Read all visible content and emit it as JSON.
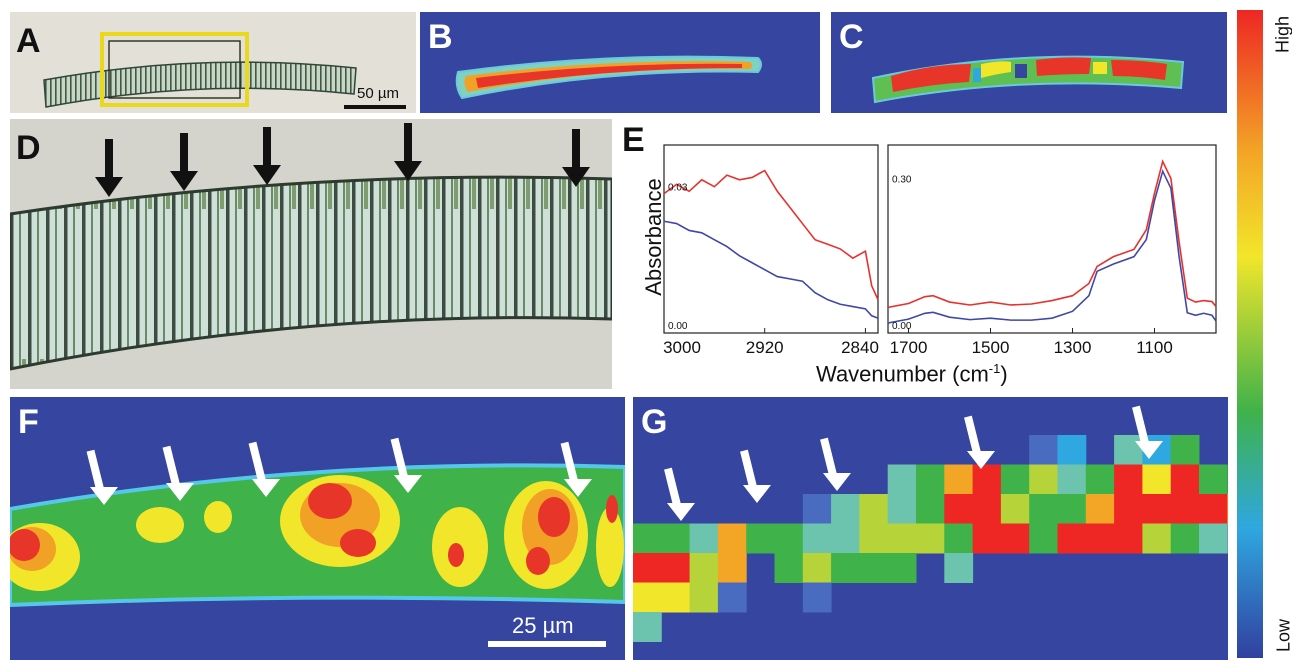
{
  "panels": {
    "A": {
      "label": "A",
      "scalebar": "50 µm"
    },
    "B": {
      "label": "B"
    },
    "C": {
      "label": "C"
    },
    "D": {
      "label": "D"
    },
    "E": {
      "label": "E"
    },
    "F": {
      "label": "F",
      "scalebar": "25 µm"
    },
    "G": {
      "label": "G"
    }
  },
  "colorbar": {
    "high": "High",
    "low": "Low",
    "colors": [
      "#3140a0",
      "#2fa7e0",
      "#3fb24a",
      "#f2e62a",
      "#ee2724"
    ]
  },
  "chart_data": {
    "type": "line",
    "ylabel": "Absorbance",
    "xlabel": "Wavenumber (cm",
    "xlabel_sup": "-1",
    "xlabel_end": ")",
    "subplots": [
      {
        "x_ticks": [
          "3000",
          "2920",
          "2840"
        ],
        "xlim": [
          3000,
          2830
        ],
        "y_ticks": [
          "0.03",
          "0.00"
        ],
        "ylim": [
          0.0,
          0.036
        ],
        "x": [
          3000,
          2990,
          2980,
          2970,
          2960,
          2950,
          2940,
          2930,
          2920,
          2910,
          2900,
          2890,
          2880,
          2870,
          2860,
          2850,
          2840,
          2835,
          2830
        ],
        "series": [
          {
            "color": "#e8312d",
            "values": [
              0.0285,
              0.0305,
              0.029,
              0.0315,
              0.03,
              0.0325,
              0.0315,
              0.032,
              0.0335,
              0.029,
              0.0255,
              0.022,
              0.0185,
              0.0175,
              0.0165,
              0.0145,
              0.016,
              0.0085,
              0.0055
            ]
          },
          {
            "color": "#3f48a6",
            "values": [
              0.0225,
              0.022,
              0.0205,
              0.02,
              0.0185,
              0.017,
              0.015,
              0.0135,
              0.012,
              0.0105,
              0.01,
              0.0095,
              0.007,
              0.0055,
              0.0045,
              0.004,
              0.0035,
              0.002,
              0.0015
            ]
          }
        ]
      },
      {
        "x_ticks": [
          "1700",
          "1500",
          "1300",
          "1100"
        ],
        "xlim": [
          1750,
          950
        ],
        "y_ticks": [
          "0.30",
          "0.00"
        ],
        "ylim": [
          0.0,
          0.34
        ],
        "x": [
          1750,
          1700,
          1660,
          1640,
          1600,
          1550,
          1500,
          1450,
          1400,
          1350,
          1300,
          1260,
          1240,
          1200,
          1150,
          1120,
          1100,
          1080,
          1060,
          1040,
          1020,
          1000,
          980,
          960,
          950
        ],
        "series": [
          {
            "color": "#e8312d",
            "values": [
              0.036,
              0.044,
              0.058,
              0.06,
              0.047,
              0.041,
              0.047,
              0.041,
              0.043,
              0.05,
              0.06,
              0.085,
              0.12,
              0.14,
              0.155,
              0.195,
              0.27,
              0.335,
              0.3,
              0.17,
              0.055,
              0.047,
              0.05,
              0.048,
              0.038
            ]
          },
          {
            "color": "#3f48a6",
            "values": [
              0.004,
              0.012,
              0.024,
              0.026,
              0.016,
              0.011,
              0.014,
              0.01,
              0.01,
              0.014,
              0.028,
              0.06,
              0.11,
              0.125,
              0.14,
              0.175,
              0.255,
              0.315,
              0.28,
              0.14,
              0.025,
              0.02,
              0.024,
              0.02,
              0.008
            ]
          }
        ]
      }
    ]
  }
}
